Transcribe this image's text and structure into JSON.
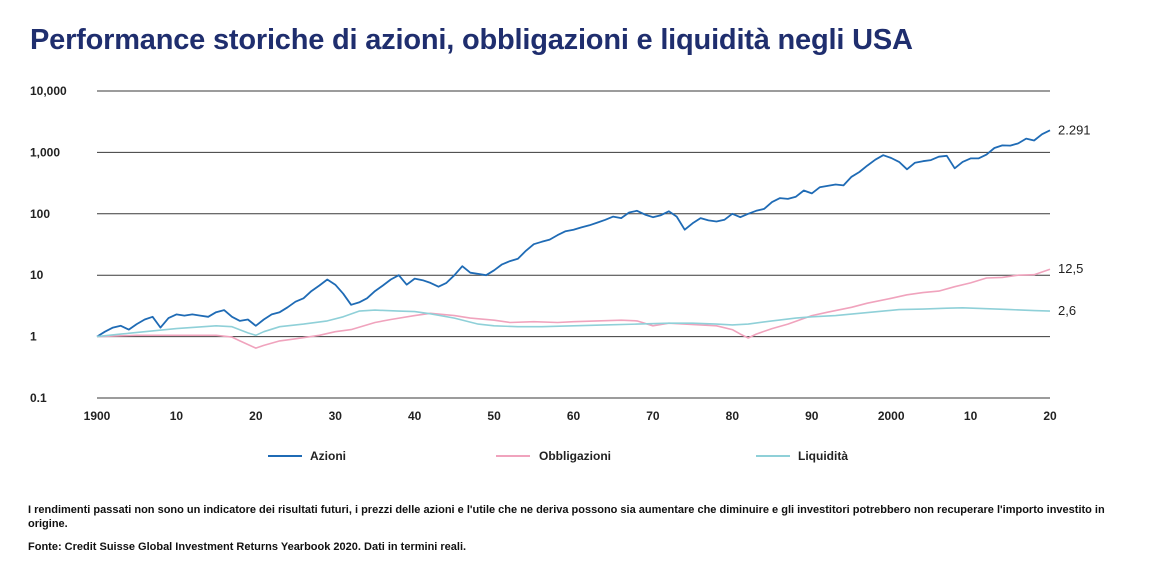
{
  "chart_data": {
    "type": "line",
    "title": "Performance storiche di azioni, obbligazioni e liquidità negli USA",
    "y_scale": "log",
    "ylim": [
      0.1,
      10000
    ],
    "xlim": [
      1900,
      2020
    ],
    "y_ticks": [
      {
        "value": 10000,
        "label": "10,000"
      },
      {
        "value": 1000,
        "label": "1,000"
      },
      {
        "value": 100,
        "label": "100"
      },
      {
        "value": 10,
        "label": "10"
      },
      {
        "value": 1,
        "label": "1"
      },
      {
        "value": 0.1,
        "label": "0.1"
      }
    ],
    "x_ticks": [
      {
        "value": 1900,
        "label": "1900"
      },
      {
        "value": 1910,
        "label": "10"
      },
      {
        "value": 1920,
        "label": "20"
      },
      {
        "value": 1930,
        "label": "30"
      },
      {
        "value": 1940,
        "label": "40"
      },
      {
        "value": 1950,
        "label": "50"
      },
      {
        "value": 1960,
        "label": "60"
      },
      {
        "value": 1970,
        "label": "70"
      },
      {
        "value": 1980,
        "label": "80"
      },
      {
        "value": 1990,
        "label": "90"
      },
      {
        "value": 2000,
        "label": "2000"
      },
      {
        "value": 2010,
        "label": "10"
      },
      {
        "value": 2020,
        "label": "20"
      }
    ],
    "series": [
      {
        "name": "Azioni",
        "color": "#1f6bb5",
        "end_label": "2.291",
        "points": [
          [
            1900,
            1
          ],
          [
            1901,
            1.2
          ],
          [
            1902,
            1.4
          ],
          [
            1903,
            1.5
          ],
          [
            1904,
            1.3
          ],
          [
            1905,
            1.6
          ],
          [
            1906,
            1.9
          ],
          [
            1907,
            2.1
          ],
          [
            1908,
            1.4
          ],
          [
            1909,
            2.0
          ],
          [
            1910,
            2.3
          ],
          [
            1911,
            2.2
          ],
          [
            1912,
            2.3
          ],
          [
            1913,
            2.2
          ],
          [
            1914,
            2.1
          ],
          [
            1915,
            2.5
          ],
          [
            1916,
            2.7
          ],
          [
            1917,
            2.1
          ],
          [
            1918,
            1.8
          ],
          [
            1919,
            1.9
          ],
          [
            1920,
            1.5
          ],
          [
            1921,
            1.9
          ],
          [
            1922,
            2.3
          ],
          [
            1923,
            2.5
          ],
          [
            1924,
            3.0
          ],
          [
            1925,
            3.7
          ],
          [
            1926,
            4.2
          ],
          [
            1927,
            5.5
          ],
          [
            1928,
            6.8
          ],
          [
            1929,
            8.5
          ],
          [
            1930,
            7.0
          ],
          [
            1931,
            5.0
          ],
          [
            1932,
            3.3
          ],
          [
            1933,
            3.6
          ],
          [
            1934,
            4.2
          ],
          [
            1935,
            5.5
          ],
          [
            1936,
            6.8
          ],
          [
            1937,
            8.5
          ],
          [
            1938,
            10.0
          ],
          [
            1939,
            7.0
          ],
          [
            1940,
            8.8
          ],
          [
            1941,
            8.3
          ],
          [
            1942,
            7.5
          ],
          [
            1943,
            6.5
          ],
          [
            1944,
            7.5
          ],
          [
            1945,
            10.0
          ],
          [
            1946,
            14.0
          ],
          [
            1947,
            11.0
          ],
          [
            1948,
            10.5
          ],
          [
            1949,
            10.0
          ],
          [
            1950,
            12.0
          ],
          [
            1951,
            15.0
          ],
          [
            1952,
            17.0
          ],
          [
            1953,
            18.5
          ],
          [
            1954,
            25.0
          ],
          [
            1955,
            32.0
          ],
          [
            1956,
            35.0
          ],
          [
            1957,
            38.0
          ],
          [
            1958,
            45.0
          ],
          [
            1959,
            52.0
          ],
          [
            1960,
            55.0
          ],
          [
            1961,
            60.0
          ],
          [
            1962,
            65.0
          ],
          [
            1963,
            72.0
          ],
          [
            1964,
            80.0
          ],
          [
            1965,
            90.0
          ],
          [
            1966,
            85.0
          ],
          [
            1967,
            105.0
          ],
          [
            1968,
            112.0
          ],
          [
            1969,
            97.0
          ],
          [
            1970,
            88.0
          ],
          [
            1971,
            95.0
          ],
          [
            1972,
            110.0
          ],
          [
            1973,
            90.0
          ],
          [
            1974,
            55.0
          ],
          [
            1975,
            70.0
          ],
          [
            1976,
            85.0
          ],
          [
            1977,
            78.0
          ],
          [
            1978,
            75.0
          ],
          [
            1979,
            80.0
          ],
          [
            1980,
            100.0
          ],
          [
            1981,
            88.0
          ],
          [
            1982,
            100.0
          ],
          [
            1983,
            112.0
          ],
          [
            1984,
            120.0
          ],
          [
            1985,
            155.0
          ],
          [
            1986,
            180.0
          ],
          [
            1987,
            175.0
          ],
          [
            1988,
            190.0
          ],
          [
            1989,
            240.0
          ],
          [
            1990,
            215.0
          ],
          [
            1991,
            270.0
          ],
          [
            1992,
            285.0
          ],
          [
            1993,
            300.0
          ],
          [
            1994,
            290.0
          ],
          [
            1995,
            400.0
          ],
          [
            1996,
            480.0
          ],
          [
            1997,
            610.0
          ],
          [
            1998,
            760.0
          ],
          [
            1999,
            900.0
          ],
          [
            2000,
            810.0
          ],
          [
            2001,
            700.0
          ],
          [
            2002,
            530.0
          ],
          [
            2003,
            680.0
          ],
          [
            2004,
            720.0
          ],
          [
            2005,
            750.0
          ],
          [
            2006,
            850.0
          ],
          [
            2007,
            880.0
          ],
          [
            2008,
            550.0
          ],
          [
            2009,
            700.0
          ],
          [
            2010,
            800.0
          ],
          [
            2011,
            800.0
          ],
          [
            2012,
            920.0
          ],
          [
            2013,
            1180.0
          ],
          [
            2014,
            1300.0
          ],
          [
            2015,
            1290.0
          ],
          [
            2016,
            1400.0
          ],
          [
            2017,
            1680.0
          ],
          [
            2018,
            1560.0
          ],
          [
            2019,
            1980.0
          ],
          [
            2020,
            2291.0
          ]
        ]
      },
      {
        "name": "Obbligazioni",
        "color": "#f0a3bd",
        "end_label": "12,5",
        "points": [
          [
            1900,
            1
          ],
          [
            1905,
            1.05
          ],
          [
            1910,
            1.05
          ],
          [
            1915,
            1.05
          ],
          [
            1917,
            0.98
          ],
          [
            1918,
            0.85
          ],
          [
            1920,
            0.65
          ],
          [
            1921,
            0.72
          ],
          [
            1923,
            0.85
          ],
          [
            1925,
            0.92
          ],
          [
            1928,
            1.05
          ],
          [
            1930,
            1.2
          ],
          [
            1932,
            1.3
          ],
          [
            1935,
            1.7
          ],
          [
            1937,
            1.9
          ],
          [
            1940,
            2.2
          ],
          [
            1942,
            2.4
          ],
          [
            1945,
            2.2
          ],
          [
            1947,
            2.0
          ],
          [
            1950,
            1.85
          ],
          [
            1952,
            1.7
          ],
          [
            1955,
            1.75
          ],
          [
            1958,
            1.7
          ],
          [
            1960,
            1.75
          ],
          [
            1963,
            1.8
          ],
          [
            1966,
            1.85
          ],
          [
            1968,
            1.8
          ],
          [
            1970,
            1.5
          ],
          [
            1972,
            1.65
          ],
          [
            1974,
            1.6
          ],
          [
            1976,
            1.55
          ],
          [
            1978,
            1.5
          ],
          [
            1980,
            1.3
          ],
          [
            1981,
            1.1
          ],
          [
            1982,
            0.95
          ],
          [
            1983,
            1.1
          ],
          [
            1985,
            1.35
          ],
          [
            1987,
            1.6
          ],
          [
            1990,
            2.2
          ],
          [
            1992,
            2.5
          ],
          [
            1995,
            3.0
          ],
          [
            1997,
            3.5
          ],
          [
            2000,
            4.2
          ],
          [
            2002,
            4.8
          ],
          [
            2004,
            5.2
          ],
          [
            2006,
            5.5
          ],
          [
            2008,
            6.5
          ],
          [
            2010,
            7.5
          ],
          [
            2012,
            9.0
          ],
          [
            2014,
            9.2
          ],
          [
            2016,
            10.0
          ],
          [
            2018,
            10.2
          ],
          [
            2020,
            12.5
          ]
        ]
      },
      {
        "name": "Liquidità",
        "color": "#8fd0d8",
        "end_label": "2,6",
        "points": [
          [
            1900,
            1
          ],
          [
            1903,
            1.1
          ],
          [
            1906,
            1.2
          ],
          [
            1910,
            1.35
          ],
          [
            1915,
            1.5
          ],
          [
            1917,
            1.45
          ],
          [
            1919,
            1.15
          ],
          [
            1920,
            1.05
          ],
          [
            1921,
            1.2
          ],
          [
            1923,
            1.45
          ],
          [
            1926,
            1.6
          ],
          [
            1929,
            1.8
          ],
          [
            1931,
            2.1
          ],
          [
            1933,
            2.6
          ],
          [
            1935,
            2.7
          ],
          [
            1938,
            2.6
          ],
          [
            1940,
            2.55
          ],
          [
            1942,
            2.35
          ],
          [
            1945,
            2.0
          ],
          [
            1948,
            1.6
          ],
          [
            1950,
            1.5
          ],
          [
            1953,
            1.45
          ],
          [
            1956,
            1.45
          ],
          [
            1960,
            1.5
          ],
          [
            1964,
            1.55
          ],
          [
            1968,
            1.6
          ],
          [
            1972,
            1.65
          ],
          [
            1975,
            1.65
          ],
          [
            1978,
            1.6
          ],
          [
            1980,
            1.55
          ],
          [
            1982,
            1.6
          ],
          [
            1985,
            1.8
          ],
          [
            1988,
            2.0
          ],
          [
            1990,
            2.1
          ],
          [
            1993,
            2.2
          ],
          [
            1996,
            2.4
          ],
          [
            1999,
            2.6
          ],
          [
            2001,
            2.75
          ],
          [
            2004,
            2.8
          ],
          [
            2007,
            2.9
          ],
          [
            2009,
            2.95
          ],
          [
            2012,
            2.85
          ],
          [
            2015,
            2.75
          ],
          [
            2018,
            2.65
          ],
          [
            2020,
            2.6
          ]
        ]
      }
    ]
  },
  "header": {
    "title": "Performance storiche di azioni, obbligazioni e liquidità negli USA"
  },
  "legend": {
    "items": [
      "Azioni",
      "Obbligazioni",
      "Liquidità"
    ]
  },
  "footer": {
    "disclaimer": "I rendimenti passati non sono un indicatore dei risultati futuri, i prezzi delle azioni e l'utile che ne deriva possono sia aumentare che diminuire e gli investitori potrebbero non recuperare l'importo investito in origine.",
    "source": "Fonte: Credit Suisse Global Investment Returns Yearbook 2020. Dati in termini reali."
  }
}
